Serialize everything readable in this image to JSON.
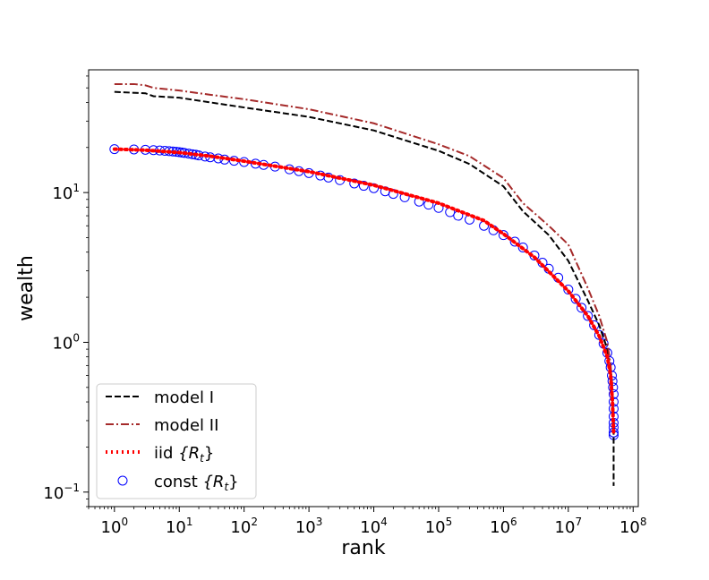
{
  "chart_data": {
    "type": "line",
    "title": "",
    "xlabel": "rank",
    "ylabel": "wealth",
    "xscale": "log",
    "yscale": "log",
    "xlim": [
      0.4,
      120000000
    ],
    "ylim": [
      0.08,
      66
    ],
    "grid": false,
    "legend_position": "lower-left",
    "x_ticks": [
      {
        "value": 1,
        "base": "10",
        "exp": "0"
      },
      {
        "value": 10,
        "base": "10",
        "exp": "1"
      },
      {
        "value": 100,
        "base": "10",
        "exp": "2"
      },
      {
        "value": 1000,
        "base": "10",
        "exp": "3"
      },
      {
        "value": 10000,
        "base": "10",
        "exp": "4"
      },
      {
        "value": 100000,
        "base": "10",
        "exp": "5"
      },
      {
        "value": 1000000,
        "base": "10",
        "exp": "6"
      },
      {
        "value": 10000000,
        "base": "10",
        "exp": "7"
      },
      {
        "value": 100000000,
        "base": "10",
        "exp": "8"
      }
    ],
    "y_ticks": [
      {
        "value": 0.1,
        "base": "10",
        "exp": "−1"
      },
      {
        "value": 1,
        "base": "10",
        "exp": "0"
      },
      {
        "value": 10,
        "base": "10",
        "exp": "1"
      }
    ],
    "series": [
      {
        "name": "model I",
        "label": "model I",
        "color": "#000000",
        "style": "dashed",
        "x": [
          1,
          3,
          4,
          10,
          30,
          100,
          1000,
          10000,
          100000,
          300000,
          1000000,
          2000000,
          5000000,
          10000000,
          20000000,
          30000000,
          40000000,
          45000000,
          50000000,
          50000000
        ],
        "y": [
          47,
          46,
          44,
          43,
          40,
          37,
          32,
          26,
          19,
          15.5,
          11,
          7.5,
          5.2,
          3.5,
          1.9,
          1.3,
          0.9,
          0.6,
          0.3,
          0.11
        ]
      },
      {
        "name": "model II",
        "label": "model II",
        "color": "#a52a2a",
        "style": "dashdot",
        "x": [
          1,
          2,
          3,
          4,
          10,
          30,
          100,
          1000,
          10000,
          100000,
          300000,
          1000000,
          2000000,
          5000000,
          10000000,
          20000000,
          30000000,
          40000000,
          45000000,
          48000000,
          50000000
        ],
        "y": [
          53,
          53,
          52,
          50,
          48,
          45,
          42,
          36,
          29,
          21,
          17.5,
          12.5,
          8.5,
          6,
          4.5,
          2.3,
          1.5,
          1.0,
          0.7,
          0.5,
          0.3
        ]
      },
      {
        "name": "iid {R_t}",
        "label_prefix": "iid ",
        "label_math": "{R",
        "label_sub": "t",
        "label_close": "}",
        "color": "#ff0000",
        "style": "dotted",
        "x": [
          1,
          3,
          10,
          30,
          100,
          1000,
          10000,
          100000,
          500000,
          1000000,
          3000000,
          10000000,
          20000000,
          30000000,
          40000000,
          45000000,
          48000000,
          50000000
        ],
        "y": [
          19.5,
          19.2,
          18.5,
          17.5,
          16.2,
          13.8,
          11.2,
          8.5,
          6.5,
          5.3,
          3.7,
          2.2,
          1.5,
          1.1,
          0.8,
          0.6,
          0.4,
          0.25
        ]
      },
      {
        "name": "const {R_t}",
        "label_prefix": "const ",
        "label_math": "{R",
        "label_sub": "t",
        "label_close": "}",
        "color": "#0000ff",
        "style": "markers-circle",
        "x": [
          1,
          2,
          3,
          4,
          5,
          6,
          7,
          8,
          9,
          10,
          11,
          12,
          14,
          16,
          18,
          20,
          25,
          30,
          40,
          50,
          70,
          100,
          150,
          200,
          300,
          500,
          700,
          1000,
          1500,
          2000,
          3000,
          5000,
          7000,
          10000,
          15000,
          20000,
          30000,
          50000,
          70000,
          100000,
          150000,
          200000,
          300000,
          500000,
          700000,
          1000000,
          1500000,
          2000000,
          3000000,
          4000000,
          5000000,
          7000000,
          10000000,
          13000000,
          16000000,
          20000000,
          25000000,
          30000000,
          35000000,
          40000000,
          43000000,
          45000000,
          47000000,
          48000000,
          49000000,
          50000000,
          50000000,
          50000000,
          50000000,
          50000000,
          50000000,
          50000000,
          50000000
        ],
        "y": [
          19.5,
          19.4,
          19.3,
          19.2,
          19.1,
          19.0,
          18.9,
          18.8,
          18.7,
          18.6,
          18.5,
          18.4,
          18.2,
          18.0,
          17.9,
          17.7,
          17.4,
          17.2,
          16.9,
          16.6,
          16.3,
          16.0,
          15.6,
          15.3,
          14.9,
          14.3,
          13.9,
          13.5,
          13.0,
          12.6,
          12.1,
          11.5,
          11.1,
          10.7,
          10.2,
          9.8,
          9.3,
          8.7,
          8.3,
          7.9,
          7.4,
          7.0,
          6.6,
          6.0,
          5.6,
          5.2,
          4.7,
          4.3,
          3.8,
          3.4,
          3.1,
          2.7,
          2.25,
          1.95,
          1.7,
          1.5,
          1.3,
          1.12,
          0.98,
          0.85,
          0.75,
          0.68,
          0.6,
          0.55,
          0.5,
          0.45,
          0.4,
          0.36,
          0.32,
          0.29,
          0.27,
          0.25,
          0.24
        ]
      }
    ]
  }
}
